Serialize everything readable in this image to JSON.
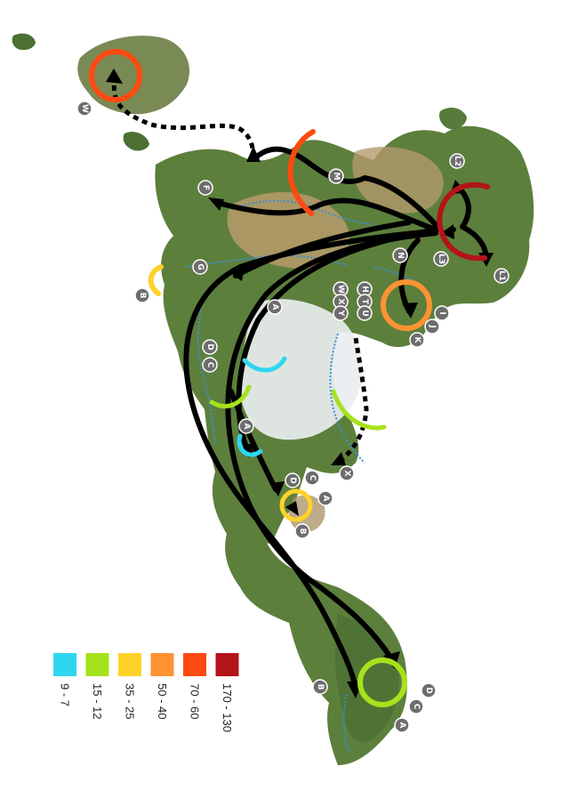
{
  "legend": [
    {
      "label": "9 - 7",
      "color": "#2fd6ef"
    },
    {
      "label": "15 - 12",
      "color": "#a6e21b"
    },
    {
      "label": "35 - 25",
      "color": "#ffd22a"
    },
    {
      "label": "50 - 40",
      "color": "#ff9233"
    },
    {
      "label": "70 - 60",
      "color": "#ff4a10"
    },
    {
      "label": "170 - 130",
      "color": "#b3141a"
    }
  ],
  "markers": [
    {
      "id": "W",
      "text": "W"
    },
    {
      "id": "M",
      "text": "M"
    },
    {
      "id": "F",
      "text": "F"
    },
    {
      "id": "G",
      "text": "G"
    },
    {
      "id": "B1",
      "text": "B"
    },
    {
      "id": "A1",
      "text": "A"
    },
    {
      "id": "C",
      "text": "C"
    },
    {
      "id": "D",
      "text": "D"
    },
    {
      "id": "A2",
      "text": "A"
    },
    {
      "id": "D2",
      "text": "D"
    },
    {
      "id": "C2",
      "text": "C"
    },
    {
      "id": "A3",
      "text": "A"
    },
    {
      "id": "B2",
      "text": "B"
    },
    {
      "id": "X",
      "text": "X"
    },
    {
      "id": "H",
      "text": "H"
    },
    {
      "id": "T",
      "text": "T"
    },
    {
      "id": "U",
      "text": "U"
    },
    {
      "id": "N",
      "text": "N"
    },
    {
      "id": "W2",
      "text": "W"
    },
    {
      "id": "X2",
      "text": "X"
    },
    {
      "id": "Y",
      "text": "Y"
    },
    {
      "id": "L2",
      "text": "L2"
    },
    {
      "id": "L3",
      "text": "L3"
    },
    {
      "id": "L1",
      "text": "L1"
    },
    {
      "id": "I",
      "text": "I"
    },
    {
      "id": "J",
      "text": "J"
    },
    {
      "id": "K",
      "text": "K"
    },
    {
      "id": "B3",
      "text": "B"
    },
    {
      "id": "D3",
      "text": "D"
    },
    {
      "id": "C3",
      "text": "C"
    },
    {
      "id": "A4",
      "text": "A"
    }
  ]
}
